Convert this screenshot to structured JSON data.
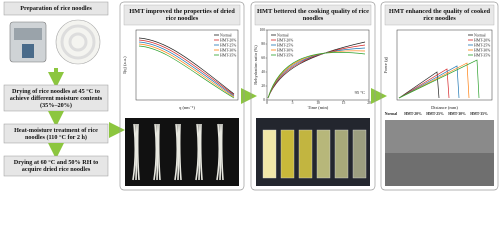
{
  "steps": [
    {
      "label": "Preparation of rice noodles"
    },
    {
      "label": "Drying of rice noodles at 45 °C to achieve different moisture contents (35%–20%)"
    },
    {
      "label": "Heat-moisture treatment of rice noodles (110 °C for 2 h)"
    },
    {
      "label": "Drying at 60 °C and 50% RH to acquire dried rice noodles"
    }
  ],
  "panels": [
    {
      "title": "HMT improved the properties of dried rice noodles",
      "chart": {
        "x_label": "q (nm⁻¹)",
        "y_label": "I(q) (a.u.)",
        "legend": [
          {
            "name": "Normal",
            "color": "#222222"
          },
          {
            "name": "HMT-20%",
            "color": "#d62728"
          },
          {
            "name": "HMT-25%",
            "color": "#1f77b4"
          },
          {
            "name": "HMT-30%",
            "color": "#ff7f0e"
          },
          {
            "name": "HMT-35%",
            "color": "#2ca02c"
          }
        ]
      }
    },
    {
      "title": "HMT bettered the cooking quality of rice noodles",
      "chart": {
        "x_label": "Time (min)",
        "y_label": "Rehydration ratio (%)",
        "annotation": "95 °C",
        "xlim": [
          0,
          20
        ],
        "xticks": [
          0,
          5,
          10,
          15,
          20
        ],
        "ylim": [
          0,
          100
        ],
        "yticks": [
          0,
          20,
          40,
          60,
          80,
          100
        ],
        "legend": [
          {
            "name": "Normal",
            "color": "#222222"
          },
          {
            "name": "HMT-20%",
            "color": "#d62728"
          },
          {
            "name": "HMT-25%",
            "color": "#1f77b4"
          },
          {
            "name": "HMT-30%",
            "color": "#ff7f0e"
          },
          {
            "name": "HMT-35%",
            "color": "#2ca02c"
          }
        ]
      }
    },
    {
      "title": "HMT enhanced the quality of cooked rice noodles",
      "chart": {
        "x_label": "Distance (mm)",
        "y_label": "Force (g)",
        "legend": [
          {
            "name": "Normal",
            "color": "#222222"
          },
          {
            "name": "HMT-20%",
            "color": "#d62728"
          },
          {
            "name": "HMT-25%",
            "color": "#1f77b4"
          },
          {
            "name": "HMT-30%",
            "color": "#ff7f0e"
          },
          {
            "name": "HMT-35%",
            "color": "#2ca02c"
          }
        ]
      },
      "image_labels": [
        "Normal",
        "HMT-20%",
        "HMT-25%",
        "HMT-30%",
        "HMT-35%"
      ]
    }
  ]
}
